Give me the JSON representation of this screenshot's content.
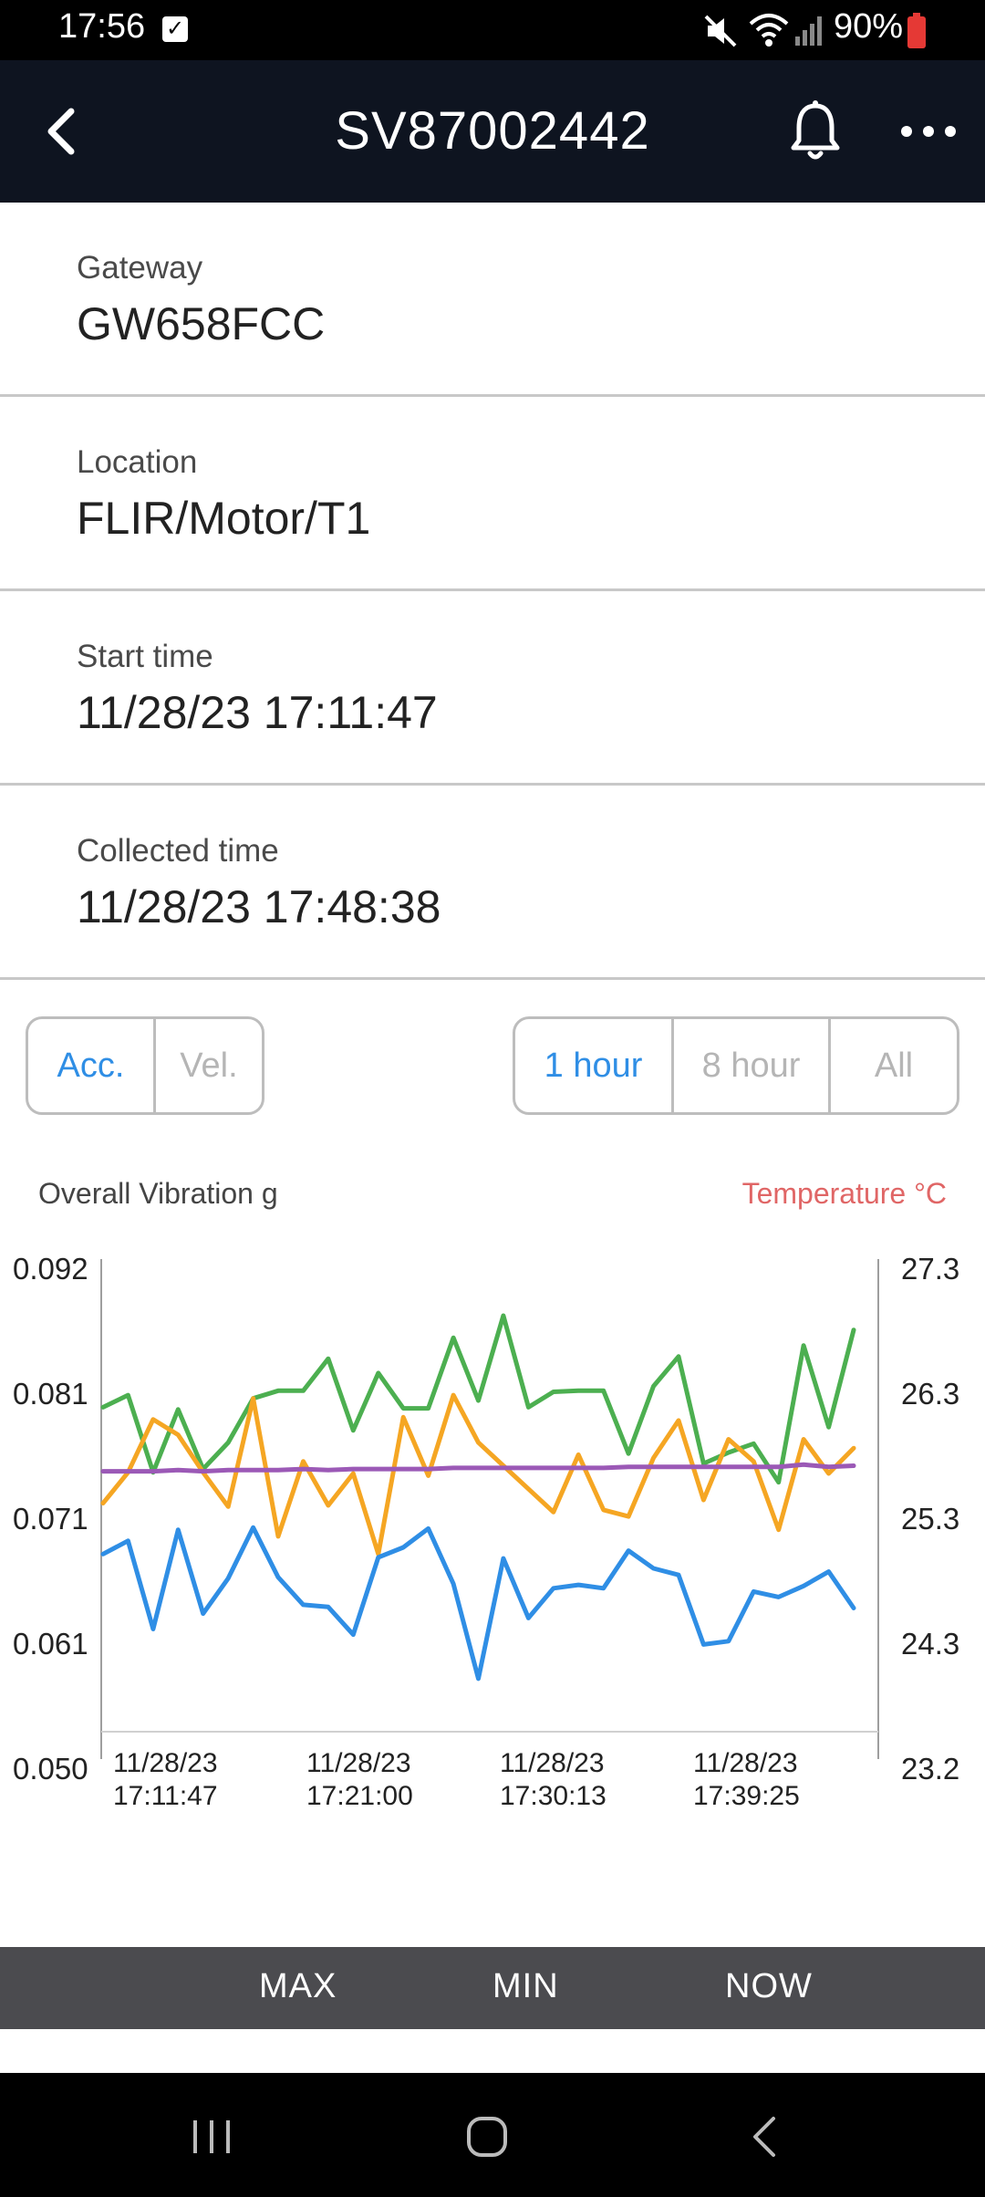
{
  "status_bar": {
    "time": "17:56",
    "battery": "90%"
  },
  "header": {
    "title": "SV87002442"
  },
  "info": [
    {
      "label": "Gateway",
      "value": "GW658FCC"
    },
    {
      "label": "Location",
      "value": "FLIR/Motor/T1"
    },
    {
      "label": "Start time",
      "value": "11/28/23 17:11:47"
    },
    {
      "label": "Collected time",
      "value": "11/28/23 17:48:38"
    }
  ],
  "mode_toggle": {
    "options": [
      "Acc.",
      "Vel."
    ],
    "selected": "Acc."
  },
  "range_toggle": {
    "options": [
      "1 hour",
      "8 hour",
      "All"
    ],
    "selected": "1 hour"
  },
  "chart_axis_titles": {
    "left": "Overall Vibration g",
    "right": "Temperature °C"
  },
  "chart_data": {
    "type": "line",
    "y_left": {
      "label": "Overall Vibration g",
      "ticks": [
        "0.092",
        "0.081",
        "0.071",
        "0.061",
        "0.050"
      ],
      "range": [
        0.05,
        0.092
      ]
    },
    "y_right": {
      "label": "Temperature °C",
      "ticks": [
        "27.3",
        "26.3",
        "25.3",
        "24.3",
        "23.2"
      ],
      "range": [
        23.2,
        27.3
      ]
    },
    "x_ticks": [
      {
        "line1": "11/28/23",
        "line2": "17:11:47"
      },
      {
        "line1": "11/28/23",
        "line2": "17:21:00"
      },
      {
        "line1": "11/28/23",
        "line2": "17:30:13"
      },
      {
        "line1": "11/28/23",
        "line2": "17:39:25"
      }
    ],
    "series": [
      {
        "color": "#4caf50",
        "values": [
          0.0794,
          0.0805,
          0.0735,
          0.0792,
          0.0738,
          0.0762,
          0.0802,
          0.0809,
          0.0809,
          0.0838,
          0.0773,
          0.0825,
          0.0793,
          0.0793,
          0.0857,
          0.08,
          0.0877,
          0.0794,
          0.0808,
          0.0809,
          0.0809,
          0.0752,
          0.0813,
          0.084,
          0.0743,
          0.0753,
          0.0761,
          0.0726,
          0.085,
          0.0776,
          0.0864
        ]
      },
      {
        "color": "#f5a623",
        "values": [
          0.0707,
          0.0735,
          0.0783,
          0.0769,
          0.0735,
          0.0704,
          0.0802,
          0.0677,
          0.0745,
          0.0705,
          0.0734,
          0.0661,
          0.0785,
          0.0732,
          0.0805,
          0.0762,
          0.0741,
          0.072,
          0.0699,
          0.0751,
          0.0701,
          0.0695,
          0.0748,
          0.0782,
          0.071,
          0.0765,
          0.0745,
          0.0683,
          0.0765,
          0.0734,
          0.0757
        ]
      },
      {
        "color": "#2f8ee5",
        "values": [
          0.0661,
          0.0673,
          0.0593,
          0.0683,
          0.0607,
          0.0639,
          0.0685,
          0.064,
          0.0615,
          0.0613,
          0.0588,
          0.0658,
          0.0667,
          0.0684,
          0.0634,
          0.0548,
          0.0657,
          0.0603,
          0.063,
          0.0633,
          0.063,
          0.0664,
          0.0648,
          0.0642,
          0.0579,
          0.0582,
          0.0627,
          0.0622,
          0.0632,
          0.0645,
          0.0612
        ]
      },
      {
        "color": "#9b59b6",
        "values": [
          0.0736,
          0.0736,
          0.0736,
          0.0737,
          0.0736,
          0.0737,
          0.0737,
          0.0737,
          0.0738,
          0.0737,
          0.0738,
          0.0738,
          0.0738,
          0.0738,
          0.0739,
          0.0739,
          0.0739,
          0.0739,
          0.0739,
          0.0739,
          0.0739,
          0.074,
          0.074,
          0.074,
          0.074,
          0.074,
          0.074,
          0.074,
          0.0742,
          0.074,
          0.0741
        ]
      }
    ]
  },
  "metrics_bar": {
    "max": "MAX",
    "min": "MIN",
    "now": "NOW"
  }
}
